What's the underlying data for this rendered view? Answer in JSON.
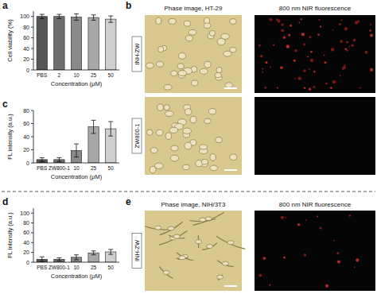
{
  "chart_data": [
    {
      "type": "bar",
      "y_label": "Cell viability (%)",
      "x_label": "Concentration (μM)",
      "categories": [
        "PBS",
        "2",
        "10",
        "25",
        "50"
      ],
      "values": [
        100,
        100,
        99,
        98,
        95
      ],
      "errors": [
        4,
        4,
        6,
        5,
        6
      ],
      "colors": [
        "#555555",
        "#6e6e6e",
        "#8a8a8a",
        "#a8a8a8",
        "#cfcfcf"
      ],
      "ylim": [
        0,
        110
      ],
      "yticks": [
        0,
        20,
        40,
        60,
        80,
        100
      ]
    },
    {
      "type": "bar",
      "y_label": "FL intensity (a.u.)",
      "x_label": "Concentration (μM)",
      "categories": [
        "PBS",
        "ZW800-1",
        "10",
        "25",
        "50"
      ],
      "values": [
        5,
        5,
        19,
        55,
        52
      ],
      "errors": [
        3,
        3,
        10,
        10,
        11
      ],
      "colors": [
        "#555555",
        "#6e6e6e",
        "#8a8a8a",
        "#a8a8a8",
        "#cfcfcf"
      ],
      "ylim": [
        0,
        80
      ],
      "yticks": [
        0,
        20,
        40,
        60,
        80
      ]
    },
    {
      "type": "bar",
      "y_label": "FL intensity (a.u.)",
      "x_label": "Concentration (μM)",
      "categories": [
        "PBS",
        "ZW800-1",
        "10",
        "25",
        "50"
      ],
      "values": [
        6,
        6,
        10,
        19,
        21
      ],
      "errors": [
        5,
        3,
        5,
        4,
        5
      ],
      "colors": [
        "#555555",
        "#6e6e6e",
        "#8a8a8a",
        "#a8a8a8",
        "#cfcfcf"
      ],
      "ylim": [
        0,
        110
      ],
      "yticks": [
        0,
        20,
        40,
        60,
        80,
        100
      ]
    }
  ],
  "figure": {
    "panel_labels": [
      "a",
      "b",
      "c",
      "d",
      "e"
    ],
    "image_panels": [
      {
        "title_left": "Phase image, HT-29",
        "title_right": "800 nm NIR fluorescence",
        "rows": [
          "INH-ZW",
          "ZW800-1"
        ]
      },
      {
        "title_left": "Phase image, NIH/3T3",
        "title_right": "800 nm NIR fluorescence",
        "rows": [
          "INH-ZW"
        ]
      }
    ]
  }
}
